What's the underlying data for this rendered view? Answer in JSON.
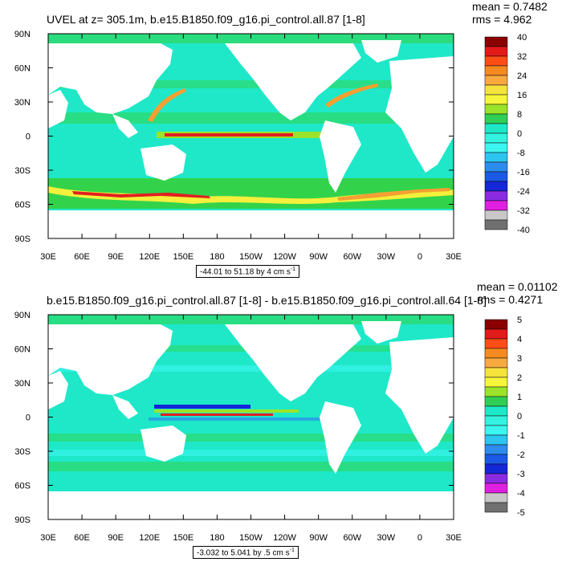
{
  "palette": {
    "land": "#ffffff",
    "base": "#1ee8c8",
    "light": "#3cf5f0",
    "green": "#32d34a",
    "yellowgreen": "#9be32a",
    "yellow": "#f5f03c",
    "orange": "#f5a032",
    "red": "#e02020",
    "blue": "#2d8cf0",
    "darkblue": "#1428d7"
  },
  "chart_data": [
    {
      "type": "heatmap",
      "title": "UVEL at z= 305.1m, b.e15.B1850.f09_g16.pi_control.all.87 [1-8]",
      "mean_label": "mean = 0.7482",
      "rms_label": "rms = 4.962",
      "range_text": "-44.01 to 51.18 by 4 cm s",
      "range_unit_exp": "-1",
      "x_ticks": [
        "30E",
        "60E",
        "90E",
        "120E",
        "150E",
        "180",
        "150W",
        "120W",
        "90W",
        "60W",
        "30W",
        "0",
        "30E"
      ],
      "y_ticks": [
        "90N",
        "60N",
        "30N",
        "0",
        "30S",
        "60S",
        "90S"
      ],
      "colorbar_levels": [
        "40",
        "32",
        "24",
        "16",
        "8",
        "0",
        "-8",
        "-16",
        "-24",
        "-32",
        "-40"
      ],
      "colorbar_colors": [
        "#8b0000",
        "#e11a1a",
        "#fc4d17",
        "#f58a20",
        "#f8a93e",
        "#f5e23d",
        "#f5f53c",
        "#9be32a",
        "#2fcf55",
        "#1ee8c8",
        "#34f2e0",
        "#3cf5f0",
        "#2dc5f0",
        "#2d8cf0",
        "#1c5ae6",
        "#1428d7",
        "#8a2be2",
        "#e020e0",
        "#c8c8c8",
        "#707070"
      ]
    },
    {
      "type": "heatmap",
      "title": "b.e15.B1850.f09_g16.pi_control.all.87 [1-8] - b.e15.B1850.f09_g16.pi_control.all.64 [1-8]",
      "mean_label": "mean = 0.01102",
      "rms_label": "rms = 0.4271",
      "range_text": "-3.032 to 5.041 by .5 cm s",
      "range_unit_exp": "-1",
      "x_ticks": [
        "30E",
        "60E",
        "90E",
        "120E",
        "150E",
        "180",
        "150W",
        "120W",
        "90W",
        "60W",
        "30W",
        "0",
        "30E"
      ],
      "y_ticks": [
        "90N",
        "60N",
        "30N",
        "0",
        "30S",
        "60S",
        "90S"
      ],
      "colorbar_levels": [
        "5",
        "4",
        "3",
        "2",
        "1",
        "0",
        "-1",
        "-2",
        "-3",
        "-4",
        "-5"
      ],
      "colorbar_colors": [
        "#8b0000",
        "#e11a1a",
        "#fc4d17",
        "#f58a20",
        "#f8a93e",
        "#f5e23d",
        "#f5f53c",
        "#9be32a",
        "#2fcf55",
        "#1ee8c8",
        "#34f2e0",
        "#3cf5f0",
        "#2dc5f0",
        "#2d8cf0",
        "#1c5ae6",
        "#1428d7",
        "#8a2be2",
        "#e020e0",
        "#c8c8c8",
        "#707070"
      ]
    }
  ]
}
